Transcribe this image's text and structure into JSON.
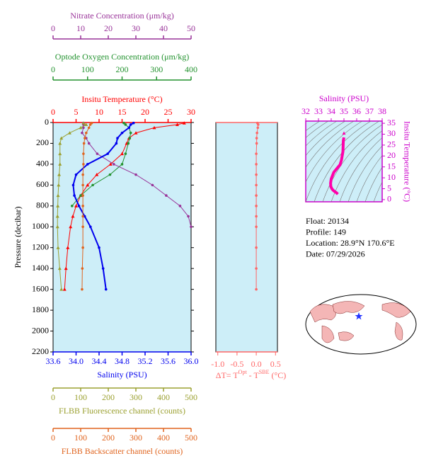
{
  "chart_data": [
    {
      "type": "profile",
      "ylabel": "Pressure (decibar)",
      "y": [
        5,
        20,
        50,
        100,
        150,
        200,
        300,
        400,
        500,
        600,
        700,
        800,
        900,
        1000,
        1200,
        1400,
        1600
      ],
      "ylim": [
        2200,
        0
      ],
      "yticks": [
        0,
        200,
        400,
        600,
        800,
        1000,
        1200,
        1400,
        1600,
        1800,
        2000,
        2200
      ],
      "background": "#cdeef8",
      "series": [
        {
          "name": "Insitu Temperature (°C)",
          "side": "top",
          "color": "#ff0000",
          "marker": "triangle",
          "xlim": [
            0,
            30
          ],
          "xticks": [
            0,
            5,
            10,
            15,
            20,
            25,
            30
          ],
          "values": [
            28.5,
            27.0,
            22.0,
            18.0,
            16.5,
            16.0,
            15.0,
            12.5,
            9.5,
            7.5,
            6.0,
            5.0,
            4.3,
            3.8,
            3.2,
            2.8,
            2.5
          ]
        },
        {
          "name": "Optode Oxygen Concentration (μm/kg)",
          "side": "top",
          "color": "#22922e",
          "marker": "circle",
          "xlim": [
            0,
            400
          ],
          "xticks": [
            0,
            100,
            200,
            300,
            400
          ],
          "values": [
            205,
            210,
            220,
            225,
            222,
            218,
            210,
            200,
            165,
            115,
            80,
            55,
            null,
            null,
            null,
            null,
            null
          ]
        },
        {
          "name": "Nitrate Concentration (μm/kg)",
          "side": "top",
          "color": "#993399",
          "marker": "circle",
          "xlim": [
            0,
            50
          ],
          "xticks": [
            0,
            10,
            20,
            30,
            40,
            50
          ],
          "values": [
            11,
            11,
            11,
            10.5,
            12,
            13,
            16,
            22,
            30,
            36,
            41,
            46,
            49,
            50,
            null,
            null,
            null
          ]
        },
        {
          "name": "Salinity (PSU)",
          "side": "bottom",
          "color": "#0000ee",
          "marker": "circle",
          "xlim": [
            33.6,
            36.0
          ],
          "xticks": [
            33.6,
            {
              "value": 34,
              "label": "34.0"
            },
            34.4,
            34.8,
            35.2,
            35.6,
            {
              "value": 36,
              "label": "36.0"
            }
          ],
          "values": [
            35.0,
            34.95,
            34.92,
            34.8,
            34.72,
            34.7,
            34.55,
            34.2,
            34.0,
            33.95,
            33.97,
            34.05,
            34.15,
            34.25,
            34.4,
            34.47,
            34.52
          ]
        },
        {
          "name": "FLBB Fluorescence channel (counts)",
          "side": "bottom",
          "color": "#9ba030",
          "marker": "triangle",
          "xlim": [
            0,
            500
          ],
          "xticks": [
            0,
            100,
            200,
            300,
            400,
            500
          ],
          "values": [
            110,
            120,
            100,
            60,
            30,
            25,
            25,
            25,
            22,
            20,
            18,
            17,
            16,
            16,
            18,
            24,
            30
          ]
        },
        {
          "name": "FLBB Backscatter channel (counts)",
          "side": "bottom",
          "color": "#e0641e",
          "marker": "circle",
          "xlim": [
            0,
            500
          ],
          "xticks": [
            0,
            100,
            200,
            300,
            400,
            500
          ],
          "values": [
            140,
            135,
            130,
            120,
            115,
            112,
            110,
            110,
            108,
            108,
            108,
            108,
            108,
            108,
            108,
            106,
            105
          ]
        }
      ]
    },
    {
      "type": "delta",
      "label_parts": [
        "ΔT= T",
        "Opt",
        " - T",
        "SBE",
        " (°C)"
      ],
      "y": [
        5,
        20,
        50,
        100,
        150,
        200,
        300,
        400,
        500,
        600,
        700,
        800,
        900,
        1000,
        1200,
        1400,
        1600
      ],
      "ylim": [
        2200,
        0
      ],
      "xlim": [
        -1.05,
        0.55
      ],
      "background": "#cdeef8",
      "color": "#ff6666",
      "xticks": [
        {
          "value": -1,
          "label": "-1.0"
        },
        -0.5,
        {
          "value": 0,
          "label": "0.0"
        },
        0.5
      ],
      "values": [
        0.03,
        0.05,
        0.04,
        0.02,
        0.01,
        0.01,
        0.0,
        0.0,
        0.0,
        0.0,
        0.0,
        0.0,
        0.0,
        0.0,
        0.0,
        0.0,
        0.0
      ]
    },
    {
      "type": "ts",
      "title": "Salinity (PSU)",
      "ylabel": "Insitu Temperature (°C)",
      "color": "#ff00aa",
      "axis_color": "#cc00cc",
      "background": "#cdeef8",
      "xlim": [
        32,
        38
      ],
      "xticks": [
        32,
        33,
        34,
        35,
        36,
        37,
        38
      ],
      "ylim": [
        -1,
        36
      ],
      "yticks": [
        0,
        5,
        10,
        15,
        20,
        25,
        30,
        35
      ],
      "x": [
        35.0,
        34.95,
        34.92,
        34.8,
        34.72,
        34.7,
        34.55,
        34.2,
        34.0,
        33.95,
        33.97,
        34.05,
        34.15,
        34.25,
        34.4,
        34.47,
        34.52
      ],
      "values": [
        28.5,
        27.0,
        22.0,
        18.0,
        16.5,
        16.0,
        15.0,
        12.5,
        9.5,
        7.5,
        6.0,
        5.0,
        4.3,
        3.8,
        3.2,
        2.8,
        2.5
      ]
    }
  ],
  "info": [
    "Float:  20134",
    "Profile:  149",
    "Location:  28.9°N  170.6°E",
    "Date:  07/29/2026"
  ]
}
